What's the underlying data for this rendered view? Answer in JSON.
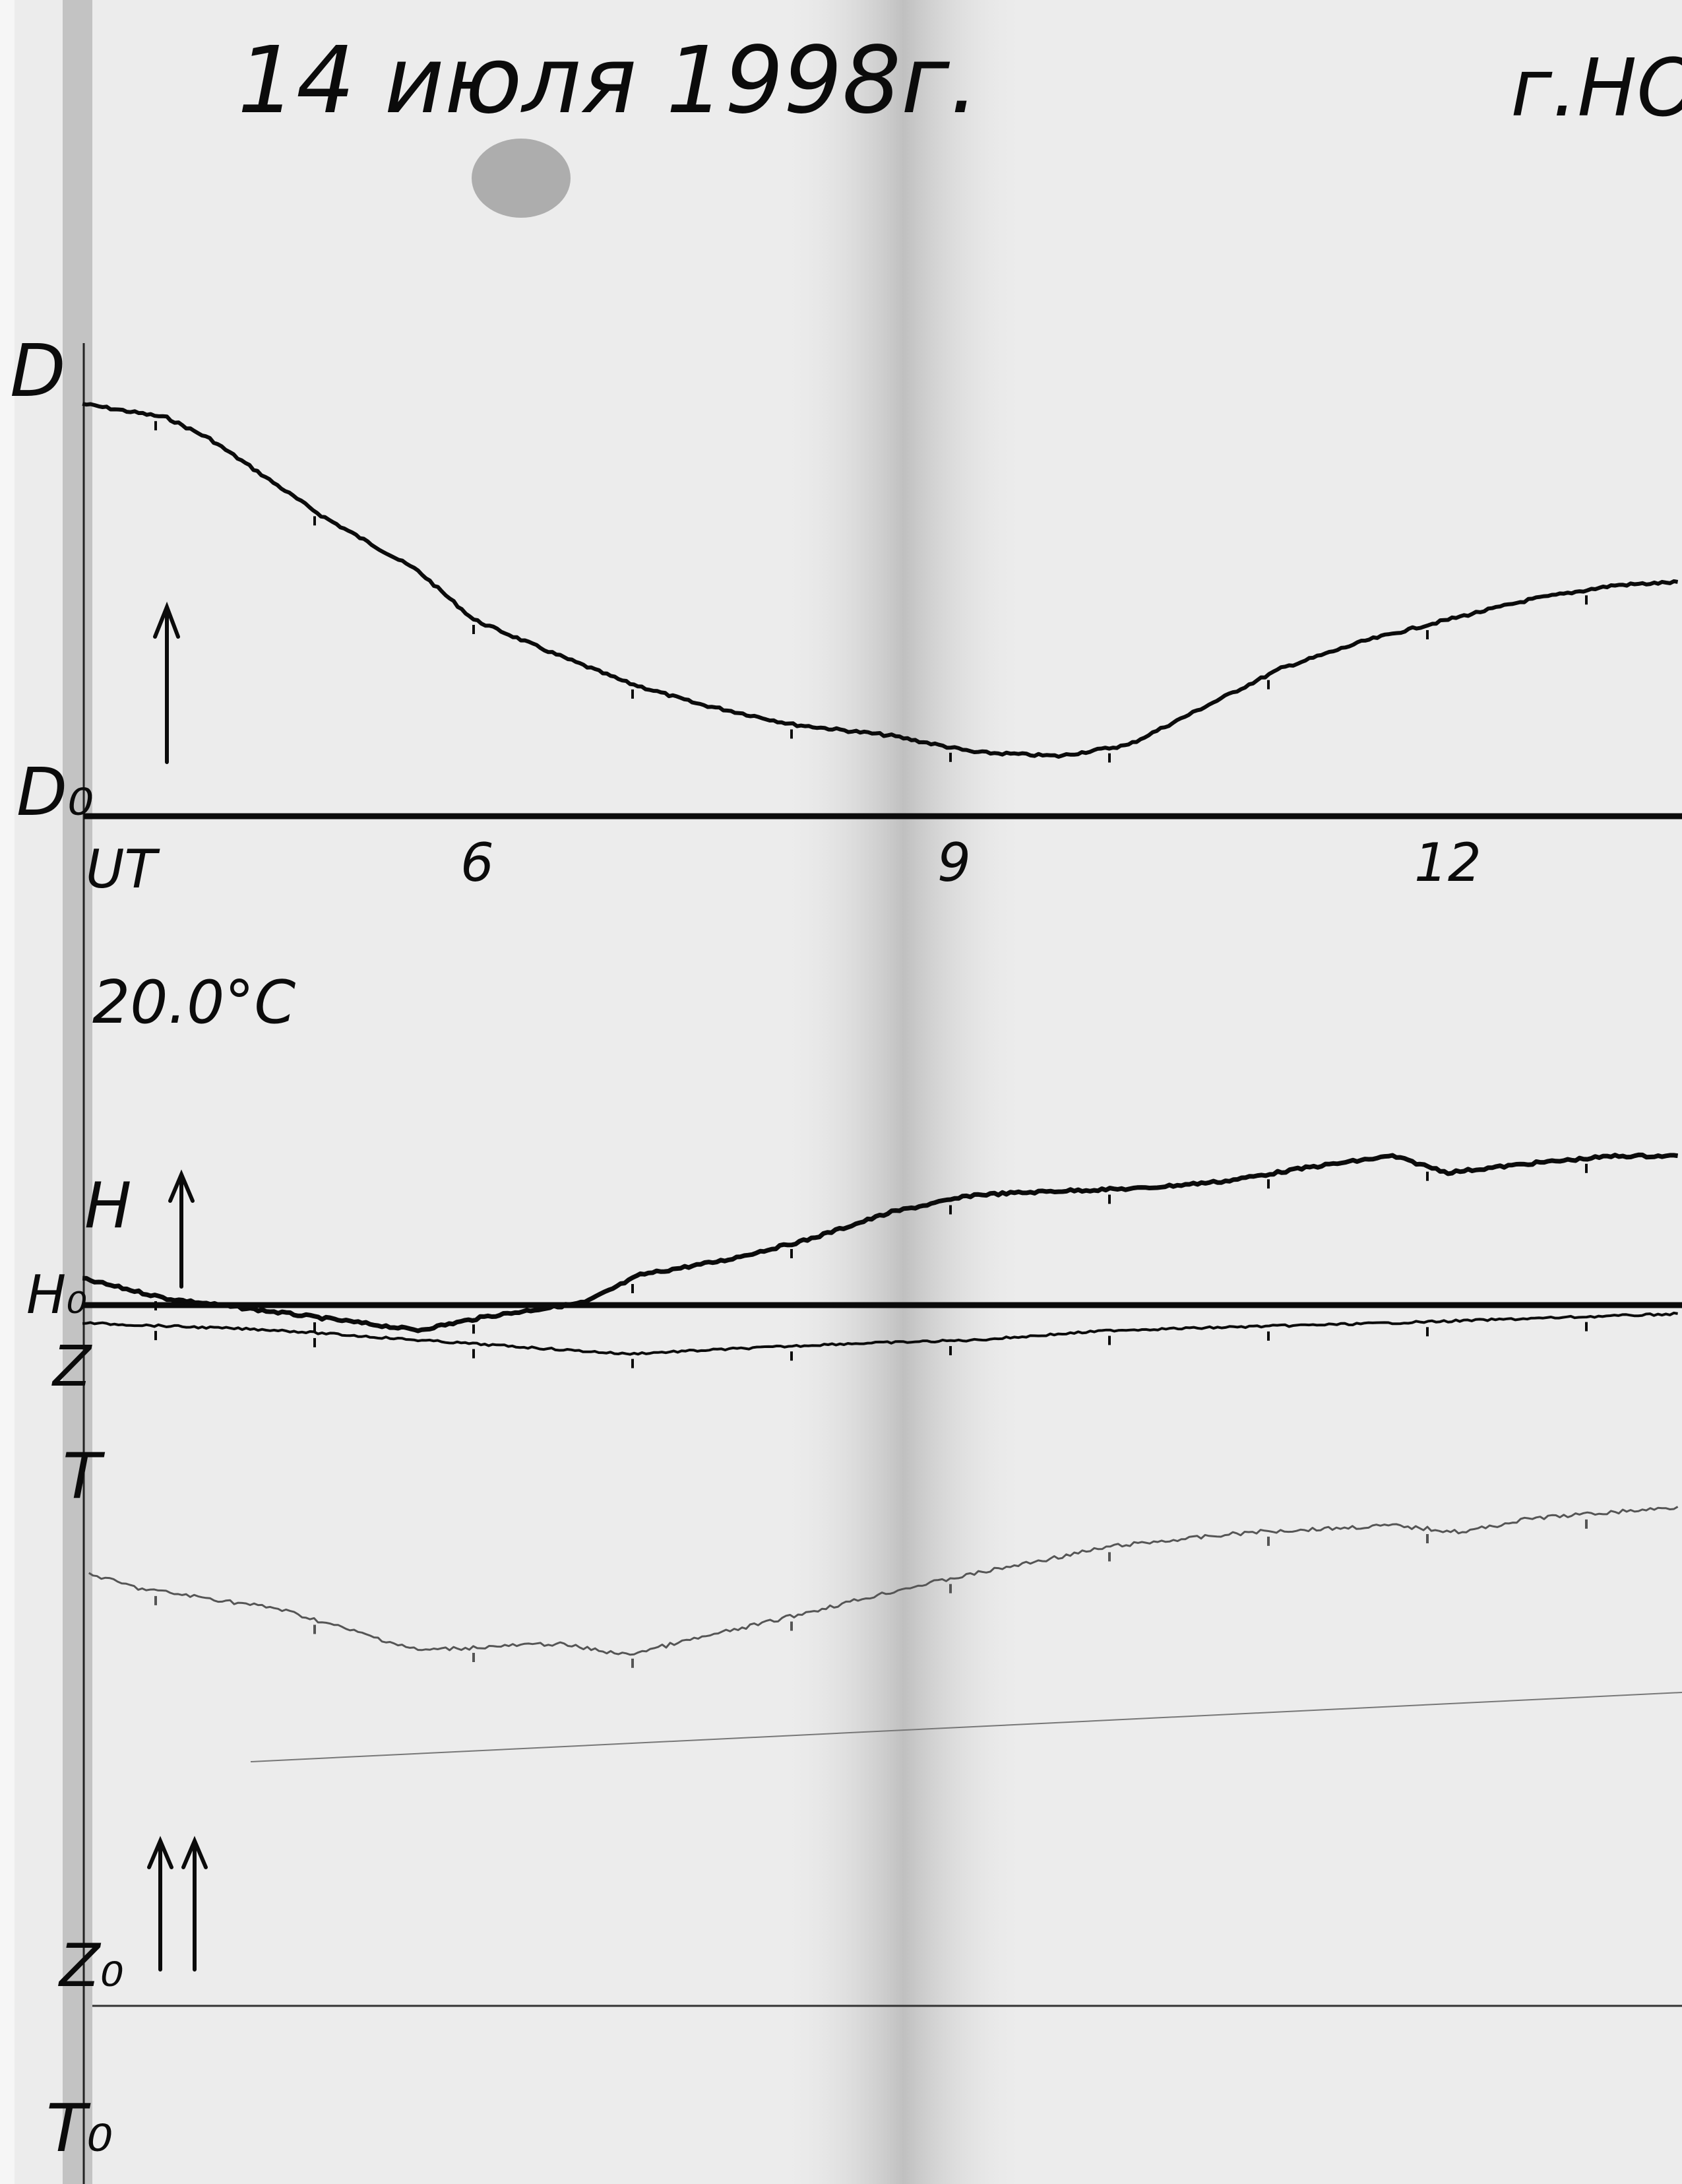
{
  "header": {
    "date": "14 июля 1998г.",
    "station": "г.НО"
  },
  "labels": {
    "d": "D",
    "d0": "D₀",
    "h": "H",
    "h0": "H₀",
    "z": "Z",
    "t": "T",
    "z0": "Z₀",
    "t0": "T₀",
    "temperature": "20.0°C"
  },
  "chart_data": {
    "type": "line",
    "xlabel": "UT",
    "x_ticks": [
      {
        "value": 6,
        "label": "6"
      },
      {
        "value": 9,
        "label": "9"
      },
      {
        "value": 12,
        "label": "12"
      }
    ],
    "xlim": [
      3.5,
      13.6
    ],
    "grid": false,
    "colors": {
      "ink": "#0b0b0b",
      "temperature_trace": "#555555",
      "paper": "#ececec"
    },
    "series": [
      {
        "name": "D",
        "baseline": "D₀",
        "x": [
          3.54,
          4.07,
          4.34,
          5.04,
          5.65,
          6.0,
          6.52,
          6.96,
          7.4,
          8.01,
          8.63,
          9.15,
          9.68,
          10.12,
          10.55,
          11.08,
          11.61,
          12.13,
          12.66,
          13.18,
          13.6
        ],
        "y": [
          62.5,
          60.4,
          57.2,
          45.6,
          37.2,
          29.8,
          24.5,
          20.3,
          17.1,
          13.9,
          12.2,
          9.7,
          9.1,
          10.8,
          16.0,
          22.4,
          26.6,
          29.8,
          32.9,
          35.0,
          35.5
        ]
      },
      {
        "name": "H",
        "baseline": "H₀",
        "x": [
          3.54,
          4.07,
          4.77,
          5.65,
          6.09,
          6.7,
          7.05,
          7.58,
          8.1,
          8.63,
          9.15,
          9.68,
          10.2,
          10.73,
          11.26,
          11.78,
          12.13,
          12.66,
          13.18,
          13.6
        ],
        "y": [
          4.0,
          1.0,
          -1.1,
          -3.8,
          -1.7,
          0.4,
          4.6,
          6.8,
          9.9,
          14.1,
          16.7,
          17.3,
          17.7,
          18.8,
          20.9,
          22.6,
          20.1,
          21.5,
          22.6,
          22.6
        ]
      },
      {
        "name": "Z",
        "baseline": "Z₀",
        "x": [
          3.54,
          4.77,
          5.65,
          6.96,
          8.28,
          9.15,
          10.03,
          11.78,
          13.6
        ],
        "y": [
          103.5,
          102.4,
          100.9,
          98.8,
          100.3,
          100.9,
          102.4,
          103.5,
          104.9
        ]
      },
      {
        "name": "T",
        "baseline": "T₀",
        "x": [
          3.58,
          3.89,
          4.77,
          5.65,
          6.52,
          6.96,
          7.84,
          8.72,
          9.15,
          10.03,
          10.9,
          11.78,
          12.22,
          12.66,
          13.6
        ],
        "y": [
          65.5,
          63.3,
          60.2,
          53.9,
          54.9,
          53.2,
          58.1,
          63.3,
          65.5,
          69.7,
          71.8,
          72.8,
          71.8,
          73.9,
          75.6
        ]
      }
    ]
  }
}
